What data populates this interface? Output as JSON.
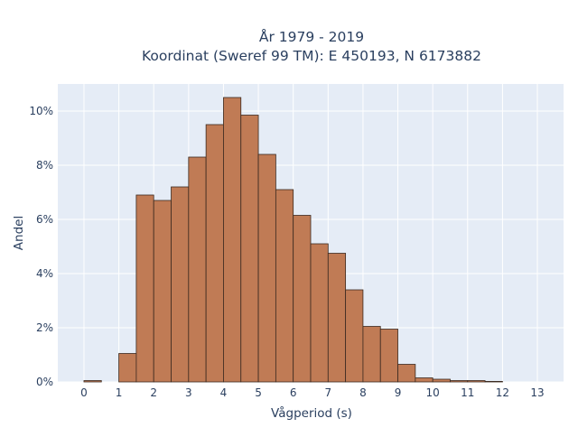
{
  "chart_data": {
    "type": "bar",
    "title_lines": [
      "År 1979 - 2019",
      "Koordinat (Sweref 99 TM): E 450193, N 6173882"
    ],
    "xlabel": "Vågperiod (s)",
    "ylabel": "Andel",
    "x_ticks": [
      "0",
      "1",
      "2",
      "3",
      "4",
      "5",
      "6",
      "7",
      "8",
      "9",
      "10",
      "11",
      "12",
      "13"
    ],
    "y_ticks": [
      "0%",
      "2%",
      "4%",
      "6%",
      "8%",
      "10%"
    ],
    "y_tick_values": [
      0,
      2,
      4,
      6,
      8,
      10
    ],
    "xlim": [
      -0.75,
      13.75
    ],
    "ylim": [
      0,
      11
    ],
    "bin_width": 0.5,
    "bins": [
      {
        "x0": 0.0,
        "value": 0.05
      },
      {
        "x0": 1.0,
        "value": 1.05
      },
      {
        "x0": 1.5,
        "value": 6.9
      },
      {
        "x0": 2.0,
        "value": 6.7
      },
      {
        "x0": 2.5,
        "value": 7.2
      },
      {
        "x0": 3.0,
        "value": 8.3
      },
      {
        "x0": 3.5,
        "value": 9.5
      },
      {
        "x0": 4.0,
        "value": 10.5
      },
      {
        "x0": 4.5,
        "value": 9.85
      },
      {
        "x0": 5.0,
        "value": 8.4
      },
      {
        "x0": 5.5,
        "value": 7.1
      },
      {
        "x0": 6.0,
        "value": 6.15
      },
      {
        "x0": 6.5,
        "value": 5.1
      },
      {
        "x0": 7.0,
        "value": 4.75
      },
      {
        "x0": 7.5,
        "value": 3.4
      },
      {
        "x0": 8.0,
        "value": 2.05
      },
      {
        "x0": 8.5,
        "value": 1.95
      },
      {
        "x0": 9.0,
        "value": 0.65
      },
      {
        "x0": 9.5,
        "value": 0.15
      },
      {
        "x0": 10.0,
        "value": 0.1
      },
      {
        "x0": 10.5,
        "value": 0.05
      },
      {
        "x0": 11.0,
        "value": 0.05
      },
      {
        "x0": 11.5,
        "value": 0.02
      }
    ],
    "bar_color": "#c07b55",
    "bar_edge_color": "#3b2a20",
    "plot_background": "#e5ecf6",
    "grid": true,
    "legend": "none"
  }
}
